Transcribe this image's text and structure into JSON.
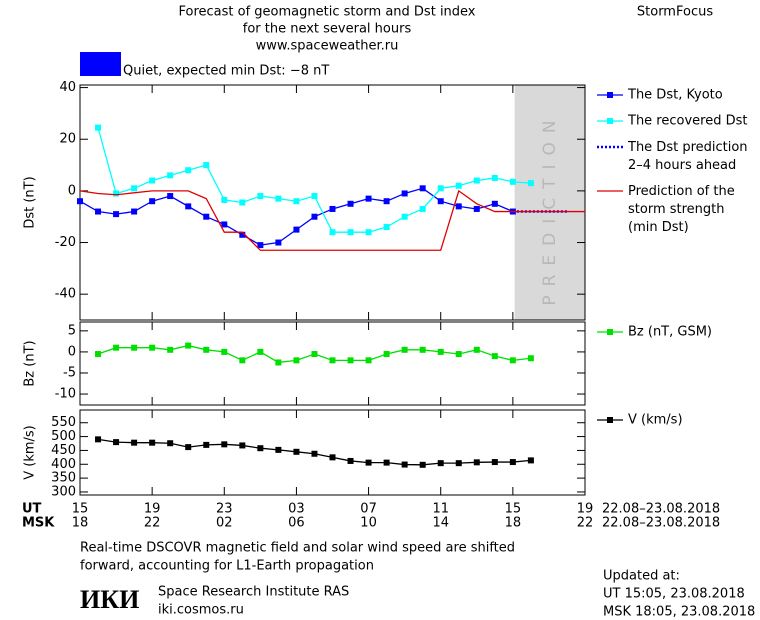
{
  "header": {
    "title_lines": [
      "Forecast of geomagnetic storm and Dst index",
      "for the next several hours",
      "www.spaceweather.ru"
    ],
    "brand": "StormFocus",
    "status": "Quiet, expected min Dst: −8 nT",
    "status_color": "#0000ff"
  },
  "chart_data": [
    {
      "type": "line",
      "ylabel": "Dst (nT)",
      "xlim": [
        0,
        28
      ],
      "ylim": [
        -50,
        41
      ],
      "yticks": [
        40,
        20,
        0,
        -20,
        -40
      ],
      "prediction_region": {
        "xlim": [
          24.1,
          28
        ],
        "label": "PREDICTION",
        "color": "#d9d9d9"
      },
      "series": [
        {
          "name": "The Dst, Kyoto",
          "color": "#0000ff",
          "marker": "square",
          "dash": false,
          "x": [
            0,
            1,
            2,
            3,
            4,
            5,
            6,
            7,
            8,
            9,
            10,
            11,
            12,
            13,
            14,
            15,
            16,
            17,
            18,
            19,
            20,
            21,
            22,
            23,
            24
          ],
          "values": [
            -4,
            -8,
            -9,
            -8,
            -4,
            -2,
            -6,
            -10,
            -13,
            -17,
            -21,
            -20,
            -15,
            -10,
            -7,
            -5,
            -3,
            -4,
            -1,
            1,
            -4,
            -6,
            -7,
            -5,
            -8
          ]
        },
        {
          "name": "The recovered Dst",
          "color": "#00ffff",
          "marker": "square",
          "dash": false,
          "x": [
            1,
            2,
            3,
            4,
            5,
            6,
            7,
            8,
            9,
            10,
            11,
            12,
            13,
            14,
            15,
            16,
            17,
            18,
            19,
            20,
            21,
            22,
            23,
            24,
            25
          ],
          "values": [
            24.5,
            -1,
            1,
            4,
            6,
            8,
            10,
            -3.5,
            -4.5,
            -2,
            -3,
            -4,
            -2,
            -16,
            -16,
            -16,
            -14,
            -10,
            -7,
            1,
            2,
            4,
            5,
            3.5,
            3
          ]
        },
        {
          "name": "The Dst prediction\n2–4 hours ahead",
          "color": "#0000ff",
          "marker": "none",
          "dash": true,
          "x": [
            24,
            27
          ],
          "values": [
            -8,
            -8
          ]
        },
        {
          "name": "Prediction of the\nstorm strength\n(min Dst)",
          "color": "#e00000",
          "marker": "none",
          "dash": false,
          "x": [
            0,
            1,
            2,
            4,
            6,
            7,
            8,
            9,
            10,
            20,
            21,
            22,
            23,
            28
          ],
          "values": [
            0,
            -1,
            -1.5,
            0,
            0,
            -3,
            -16,
            -16,
            -23,
            -23,
            0,
            -5,
            -8,
            -8
          ]
        }
      ]
    },
    {
      "type": "line",
      "ylabel": "Bz (nT)",
      "xlim": [
        0,
        28
      ],
      "ylim": [
        -12.6,
        7.1
      ],
      "yticks": [
        5,
        0,
        -5,
        -10
      ],
      "series": [
        {
          "name": "Bz (nT, GSM)",
          "color": "#00e000",
          "marker": "square",
          "dash": false,
          "x": [
            1,
            2,
            3,
            4,
            5,
            6,
            7,
            8,
            9,
            10,
            11,
            12,
            13,
            14,
            15,
            16,
            17,
            18,
            19,
            20,
            21,
            22,
            23,
            24,
            25
          ],
          "values": [
            -0.5,
            1,
            1,
            1,
            0.5,
            1.5,
            0.5,
            0,
            -2,
            0,
            -2.5,
            -2,
            -0.5,
            -2,
            -2,
            -2,
            -0.5,
            0.5,
            0.5,
            0,
            -0.5,
            0.5,
            -1,
            -2,
            -1.5
          ]
        }
      ]
    },
    {
      "type": "line",
      "ylabel": "V (km/s)",
      "xlim": [
        0,
        28
      ],
      "ylim": [
        289,
        596
      ],
      "yticks": [
        550,
        500,
        450,
        400,
        350,
        300
      ],
      "series": [
        {
          "name": "V (km/s)",
          "color": "#000000",
          "marker": "square",
          "dash": false,
          "x": [
            1,
            2,
            3,
            4,
            5,
            6,
            7,
            8,
            9,
            10,
            11,
            12,
            13,
            14,
            15,
            16,
            17,
            18,
            19,
            20,
            21,
            22,
            23,
            24,
            25
          ],
          "values": [
            490,
            480,
            478,
            478,
            476,
            462,
            470,
            472,
            468,
            458,
            452,
            445,
            438,
            425,
            412,
            406,
            406,
            399,
            398,
            404,
            404,
            407,
            408,
            408,
            414
          ]
        }
      ]
    }
  ],
  "x_axis": {
    "rows": [
      {
        "name": "UT",
        "date_range": "22.08–23.08.2018",
        "ticks": [
          {
            "value": 0,
            "label": "15"
          },
          {
            "value": 4,
            "label": "19"
          },
          {
            "value": 8,
            "label": "23"
          },
          {
            "value": 12,
            "label": "03"
          },
          {
            "value": 16,
            "label": "07"
          },
          {
            "value": 20,
            "label": "11"
          },
          {
            "value": 24,
            "label": "15"
          },
          {
            "value": 28,
            "label": "19"
          }
        ]
      },
      {
        "name": "MSK",
        "date_range": "22.08–23.08.2018",
        "ticks": [
          {
            "value": 0,
            "label": "18"
          },
          {
            "value": 4,
            "label": "22"
          },
          {
            "value": 8,
            "label": "02"
          },
          {
            "value": 12,
            "label": "06"
          },
          {
            "value": 16,
            "label": "10"
          },
          {
            "value": 20,
            "label": "14"
          },
          {
            "value": 24,
            "label": "18"
          },
          {
            "value": 28,
            "label": "22"
          }
        ]
      }
    ]
  },
  "footer": {
    "note_lines": [
      "Real-time DSCOVR magnetic field and solar wind speed are shifted",
      "forward, accounting for L1-Earth propagation"
    ],
    "logo": "ИКИ",
    "institute": "Space Research Institute RAS",
    "site": "iki.cosmos.ru",
    "updated_lines": [
      "Updated at:",
      "UT  15:05, 23.08.2018",
      "MSK 18:05, 23.08.2018"
    ]
  }
}
